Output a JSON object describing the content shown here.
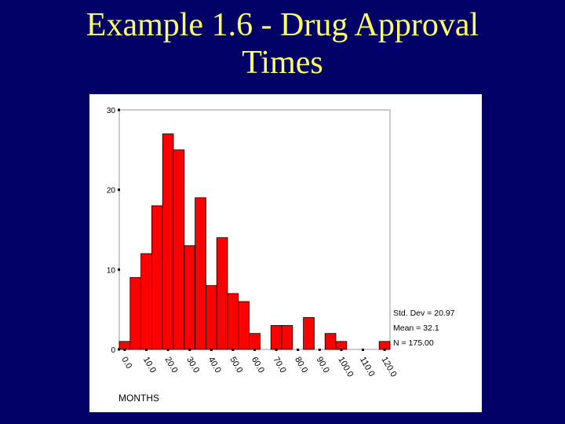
{
  "slide": {
    "title_line1": "Example 1.6 - Drug Approval",
    "title_line2": "Times"
  },
  "colors": {
    "background": "#000066",
    "title": "#ffff66",
    "bar_fill": "#ff0000",
    "bar_stroke": "#000000",
    "panel": "#ffffff"
  },
  "chart_data": {
    "type": "bar",
    "title": "",
    "xlabel": "MONTHS",
    "ylabel": "",
    "xlim": [
      -2.5,
      122.5
    ],
    "ylim": [
      0,
      30
    ],
    "bin_width": 5,
    "y_ticks": [
      0,
      10,
      20,
      30
    ],
    "x_ticks": [
      "0.0",
      "10.0",
      "20.0",
      "30.0",
      "40.0",
      "50.0",
      "60.0",
      "70.0",
      "80.0",
      "90.0",
      "100.0",
      "110.0",
      "120.0"
    ],
    "bins": [
      {
        "center": 0,
        "count": 1
      },
      {
        "center": 5,
        "count": 9
      },
      {
        "center": 10,
        "count": 12
      },
      {
        "center": 15,
        "count": 18
      },
      {
        "center": 20,
        "count": 27
      },
      {
        "center": 25,
        "count": 25
      },
      {
        "center": 30,
        "count": 13
      },
      {
        "center": 35,
        "count": 19
      },
      {
        "center": 40,
        "count": 8
      },
      {
        "center": 45,
        "count": 14
      },
      {
        "center": 50,
        "count": 7
      },
      {
        "center": 55,
        "count": 6
      },
      {
        "center": 60,
        "count": 2
      },
      {
        "center": 65,
        "count": 0
      },
      {
        "center": 70,
        "count": 3
      },
      {
        "center": 75,
        "count": 3
      },
      {
        "center": 80,
        "count": 0
      },
      {
        "center": 85,
        "count": 4
      },
      {
        "center": 90,
        "count": 0
      },
      {
        "center": 95,
        "count": 2
      },
      {
        "center": 100,
        "count": 1
      },
      {
        "center": 105,
        "count": 0
      },
      {
        "center": 110,
        "count": 0
      },
      {
        "center": 115,
        "count": 0
      },
      {
        "center": 120,
        "count": 1
      }
    ],
    "stats": {
      "std_dev": "Std. Dev = 20.97",
      "mean": "Mean = 32.1",
      "n": "N = 175.00"
    },
    "grid": false,
    "legend": "none"
  }
}
